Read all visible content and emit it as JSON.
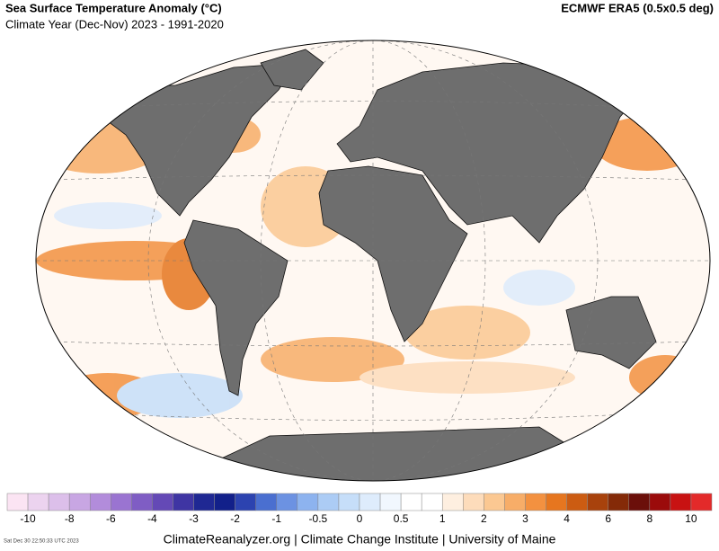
{
  "header": {
    "title": "Sea Surface Temperature Anomaly (°C)",
    "subtitle": "Climate Year (Dec-Nov) 2023 - 1991-2020",
    "source": "ECMWF ERA5 (0.5x0.5 deg)"
  },
  "colorbar": {
    "colors": [
      "#fbe4f3",
      "#ecd3ef",
      "#dcbfea",
      "#c8a6e3",
      "#b28cdb",
      "#9a74d1",
      "#7f5dc4",
      "#6449b6",
      "#3f35a3",
      "#1f2893",
      "#12208a",
      "#2c43b0",
      "#4a6fd0",
      "#6c92e2",
      "#8db3ef",
      "#acccf5",
      "#c6def9",
      "#deecfc",
      "#f1f7fe",
      "#ffffff",
      "#ffffff",
      "#feefe0",
      "#fddcbb",
      "#fbc892",
      "#f7ad68",
      "#f39140",
      "#e6761f",
      "#cc5c12",
      "#a8420c",
      "#842a08",
      "#6b0f0a",
      "#9b0b0b",
      "#c81212",
      "#e32a2a"
    ],
    "ticks": [
      "-10",
      "-8",
      "-6",
      "-4",
      "-3",
      "-2",
      "-1",
      "-0.5",
      "0",
      "0.5",
      "1",
      "2",
      "3",
      "4",
      "6",
      "8",
      "10"
    ]
  },
  "footer": {
    "credit": "ClimateReanalyzer.org | Climate Change Institute | University of Maine",
    "timestamp": "Sat Dec 30 22:50:33 UTC 2023"
  }
}
